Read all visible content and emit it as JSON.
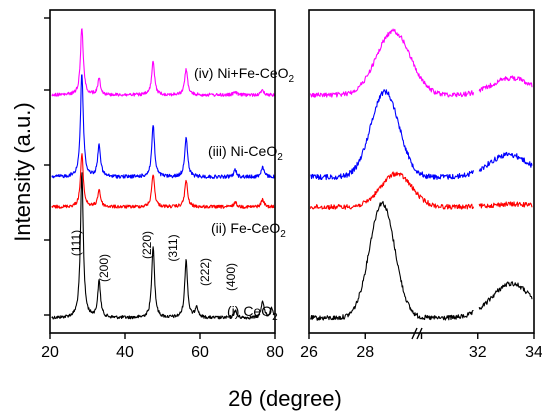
{
  "chart_data": {
    "type": "line",
    "ylabel": "Intensity (a.u.)",
    "xlabel": "2θ (degree)",
    "panels": [
      {
        "name": "left",
        "xlim": [
          20,
          80
        ],
        "xticks": [
          20,
          40,
          60,
          80
        ],
        "xtick_labels": [
          "20",
          "40",
          "60",
          "80"
        ]
      },
      {
        "name": "right",
        "xlim": [
          26,
          34
        ],
        "xticks": [
          26,
          28,
          30,
          32,
          34
        ],
        "xtick_labels": [
          "26",
          "28",
          "30",
          "32",
          "34"
        ],
        "axis_break": "//"
      }
    ],
    "series": [
      {
        "label_prefix": "(i) CeO",
        "label_sub": "2",
        "color": "#000000",
        "left_peaks": [
          [
            28.5,
            1.0
          ],
          [
            33.1,
            0.25
          ],
          [
            47.5,
            0.5
          ],
          [
            56.3,
            0.4
          ],
          [
            59.1,
            0.08
          ],
          [
            69.4,
            0.05
          ],
          [
            76.7,
            0.12
          ],
          [
            79.1,
            0.06
          ]
        ],
        "right_peaks": [
          [
            28.6,
            1.0,
            0.45
          ],
          [
            33.2,
            0.3,
            0.7
          ]
        ]
      },
      {
        "label_prefix": "(ii) Fe-CeO",
        "label_sub": "2",
        "color": "#ff0000",
        "left_peaks": [
          [
            28.5,
            0.55
          ],
          [
            33.1,
            0.18
          ],
          [
            47.5,
            0.35
          ],
          [
            56.3,
            0.28
          ],
          [
            69.4,
            0.05
          ],
          [
            76.7,
            0.08
          ]
        ],
        "right_peaks": [
          [
            29.1,
            0.35,
            0.55
          ],
          [
            33.2,
            0.03,
            0.7
          ]
        ]
      },
      {
        "label_prefix": "(iii) Ni-CeO",
        "label_sub": "2",
        "color": "#0000ff",
        "left_peaks": [
          [
            28.5,
            0.9
          ],
          [
            33.1,
            0.28
          ],
          [
            47.5,
            0.45
          ],
          [
            56.3,
            0.35
          ],
          [
            69.4,
            0.06
          ],
          [
            76.7,
            0.09
          ]
        ],
        "right_peaks": [
          [
            28.7,
            0.95,
            0.5
          ],
          [
            33.1,
            0.25,
            0.7
          ]
        ]
      },
      {
        "label_prefix": "(iv) Ni+Fe-CeO",
        "label_sub": "2",
        "color": "#ff00ff",
        "left_peaks": [
          [
            28.5,
            0.85
          ],
          [
            33.1,
            0.2
          ],
          [
            47.5,
            0.42
          ],
          [
            56.3,
            0.33
          ],
          [
            69.4,
            0.04
          ],
          [
            76.7,
            0.06
          ]
        ],
        "right_peaks": [
          [
            29.0,
            0.75,
            0.6
          ],
          [
            33.2,
            0.2,
            0.7
          ]
        ]
      }
    ],
    "annotations": [
      {
        "text": "(111)",
        "x": 28.5
      },
      {
        "text": "(200)",
        "x": 33.1
      },
      {
        "text": "(220)",
        "x": 47.5
      },
      {
        "text": "(311)",
        "x": 56.3
      },
      {
        "text": "(222)",
        "x": 59.1
      },
      {
        "text": "(400)",
        "x": 69.4
      }
    ]
  }
}
